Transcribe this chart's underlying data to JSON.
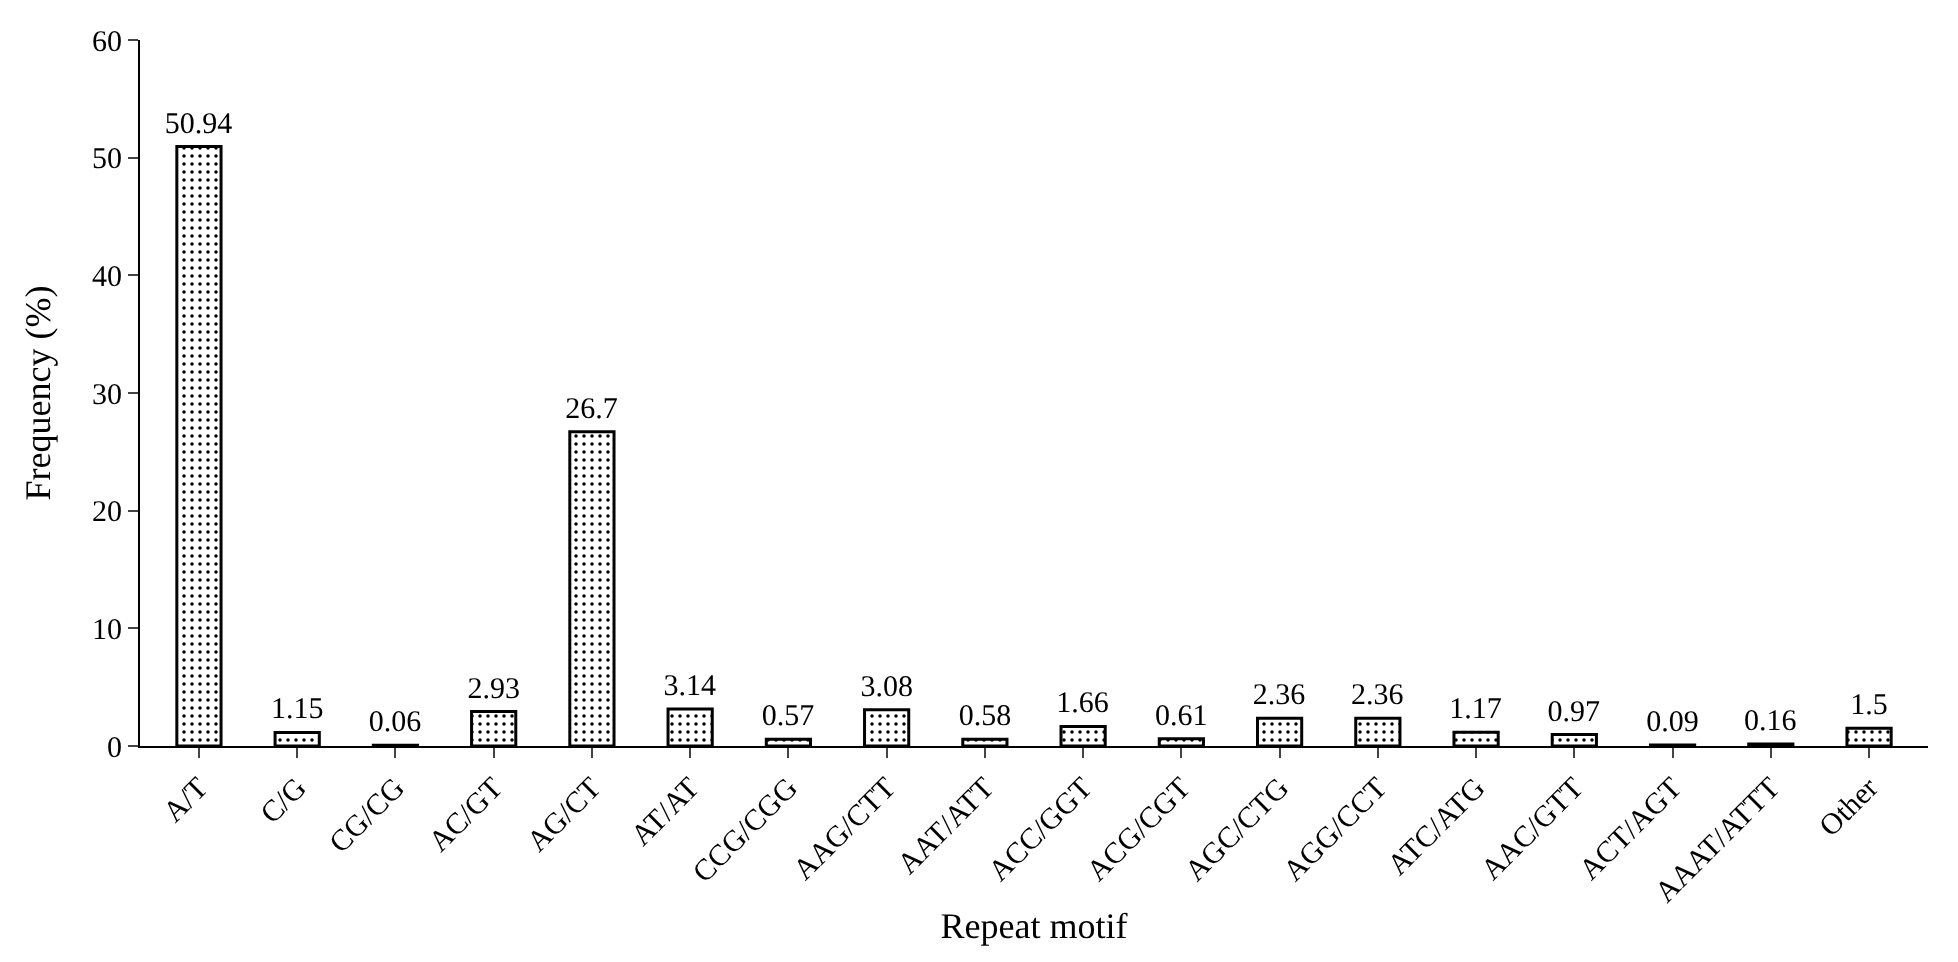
{
  "chart_data": {
    "type": "bar",
    "xlabel": "Repeat motif",
    "ylabel": "Frequency (%)",
    "categories": [
      "A/T",
      "C/G",
      "CG/CG",
      "AC/GT",
      "AG/CT",
      "AT/AT",
      "CCG/CGG",
      "AAG/CTT",
      "AAT/ATT",
      "ACC/GGT",
      "ACG/CGT",
      "AGC/CTG",
      "AGG/CCT",
      "ATC/ATG",
      "AAC/GTT",
      "ACT/AGT",
      "AAAT/ATTT",
      "Other"
    ],
    "values": [
      50.94,
      1.15,
      0.06,
      2.93,
      26.7,
      3.14,
      0.57,
      3.08,
      0.58,
      1.66,
      0.61,
      2.36,
      2.36,
      1.17,
      0.97,
      0.09,
      0.16,
      1.5
    ],
    "color": "#000000",
    "ylim": [
      0,
      60
    ],
    "yticks": [
      0,
      10,
      20,
      30,
      40,
      50,
      60
    ],
    "data_labels": true
  }
}
